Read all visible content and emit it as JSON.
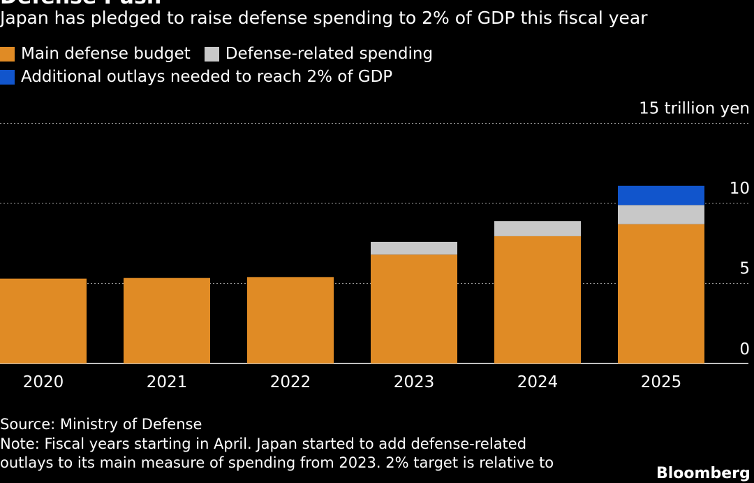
{
  "title": "Defense Push",
  "subtitle": "Japan has pledged to raise defense spending to 2% of GDP this fiscal year",
  "legend": [
    {
      "label": "Main defense budget",
      "color": "#e08b25"
    },
    {
      "label": "Defense-related spending",
      "color": "#c8c8c8"
    },
    {
      "label": "Additional outlays needed to reach 2% of GDP",
      "color": "#1155cc"
    }
  ],
  "chart_data": {
    "type": "bar",
    "stacked": true,
    "categories": [
      "2020",
      "2021",
      "2022",
      "2023",
      "2024",
      "2025"
    ],
    "series": [
      {
        "name": "Main defense budget",
        "color": "#e08b25",
        "values": [
          5.3,
          5.34,
          5.4,
          6.8,
          7.95,
          8.7
        ]
      },
      {
        "name": "Defense-related spending",
        "color": "#c8c8c8",
        "values": [
          0,
          0,
          0,
          0.8,
          0.95,
          1.2
        ]
      },
      {
        "name": "Additional outlays needed to reach 2% of GDP",
        "color": "#1155cc",
        "values": [
          0,
          0,
          0,
          0,
          0,
          1.2
        ]
      }
    ],
    "ylim": [
      0,
      15
    ],
    "yticks": [
      0,
      5,
      10,
      15
    ],
    "ytick_labels": [
      "0",
      "5",
      "10",
      "15 trillion yen"
    ],
    "grid": true,
    "legend_position": "top-left"
  },
  "footer": {
    "source": "Source: Ministry of Defense",
    "note_line1": "Note: Fiscal years starting in April. Japan started to add defense-related",
    "note_line2": "outlays to its main measure of spending from 2023. 2% target is relative to",
    "brand": "Bloomberg"
  }
}
